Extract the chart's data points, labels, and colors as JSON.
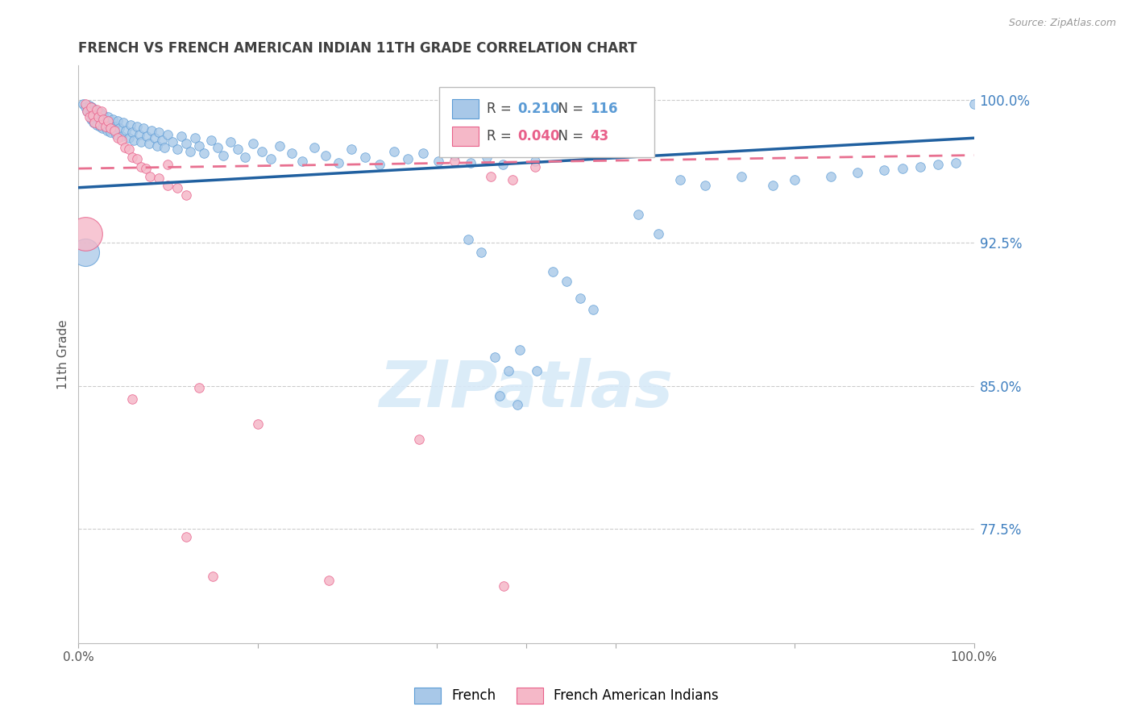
{
  "title": "FRENCH VS FRENCH AMERICAN INDIAN 11TH GRADE CORRELATION CHART",
  "source": "Source: ZipAtlas.com",
  "ylabel": "11th Grade",
  "xmin": 0.0,
  "xmax": 1.0,
  "ymin": 0.715,
  "ymax": 1.018,
  "yticks": [
    0.775,
    0.85,
    0.925,
    1.0
  ],
  "ytick_labels": [
    "77.5%",
    "85.0%",
    "92.5%",
    "100.0%"
  ],
  "legend_blue_r": "0.210",
  "legend_blue_n": "116",
  "legend_pink_r": "0.040",
  "legend_pink_n": "43",
  "blue_fill": "#a8c8e8",
  "blue_edge": "#5b9bd5",
  "pink_fill": "#f5b8c8",
  "pink_edge": "#e8608a",
  "blue_line": "#2060a0",
  "pink_line": "#e87090",
  "grid_color": "#cccccc",
  "title_color": "#404040",
  "right_axis_color": "#4080c0",
  "watermark_color": "#d8eaf8",
  "blue_scatter": [
    [
      0.005,
      0.998
    ],
    [
      0.008,
      0.996
    ],
    [
      0.01,
      0.994
    ],
    [
      0.012,
      0.997
    ],
    [
      0.013,
      0.993
    ],
    [
      0.014,
      0.99
    ],
    [
      0.015,
      0.996
    ],
    [
      0.016,
      0.992
    ],
    [
      0.017,
      0.988
    ],
    [
      0.018,
      0.995
    ],
    [
      0.019,
      0.991
    ],
    [
      0.02,
      0.987
    ],
    [
      0.022,
      0.994
    ],
    [
      0.023,
      0.99
    ],
    [
      0.024,
      0.986
    ],
    [
      0.025,
      0.993
    ],
    [
      0.026,
      0.989
    ],
    [
      0.027,
      0.985
    ],
    [
      0.028,
      0.992
    ],
    [
      0.03,
      0.988
    ],
    [
      0.032,
      0.984
    ],
    [
      0.033,
      0.991
    ],
    [
      0.034,
      0.987
    ],
    [
      0.036,
      0.983
    ],
    [
      0.038,
      0.99
    ],
    [
      0.04,
      0.986
    ],
    [
      0.042,
      0.982
    ],
    [
      0.044,
      0.989
    ],
    [
      0.046,
      0.985
    ],
    [
      0.048,
      0.981
    ],
    [
      0.05,
      0.988
    ],
    [
      0.053,
      0.984
    ],
    [
      0.056,
      0.98
    ],
    [
      0.058,
      0.987
    ],
    [
      0.06,
      0.983
    ],
    [
      0.062,
      0.979
    ],
    [
      0.065,
      0.986
    ],
    [
      0.068,
      0.982
    ],
    [
      0.07,
      0.978
    ],
    [
      0.073,
      0.985
    ],
    [
      0.076,
      0.981
    ],
    [
      0.079,
      0.977
    ],
    [
      0.082,
      0.984
    ],
    [
      0.085,
      0.98
    ],
    [
      0.088,
      0.976
    ],
    [
      0.09,
      0.983
    ],
    [
      0.093,
      0.979
    ],
    [
      0.096,
      0.975
    ],
    [
      0.1,
      0.982
    ],
    [
      0.105,
      0.978
    ],
    [
      0.11,
      0.974
    ],
    [
      0.115,
      0.981
    ],
    [
      0.12,
      0.977
    ],
    [
      0.125,
      0.973
    ],
    [
      0.13,
      0.98
    ],
    [
      0.135,
      0.976
    ],
    [
      0.14,
      0.972
    ],
    [
      0.148,
      0.979
    ],
    [
      0.155,
      0.975
    ],
    [
      0.162,
      0.971
    ],
    [
      0.17,
      0.978
    ],
    [
      0.178,
      0.974
    ],
    [
      0.186,
      0.97
    ],
    [
      0.195,
      0.977
    ],
    [
      0.205,
      0.973
    ],
    [
      0.215,
      0.969
    ],
    [
      0.225,
      0.976
    ],
    [
      0.238,
      0.972
    ],
    [
      0.25,
      0.968
    ],
    [
      0.263,
      0.975
    ],
    [
      0.276,
      0.971
    ],
    [
      0.29,
      0.967
    ],
    [
      0.305,
      0.974
    ],
    [
      0.32,
      0.97
    ],
    [
      0.336,
      0.966
    ],
    [
      0.352,
      0.973
    ],
    [
      0.368,
      0.969
    ],
    [
      0.385,
      0.972
    ],
    [
      0.402,
      0.968
    ],
    [
      0.42,
      0.971
    ],
    [
      0.438,
      0.967
    ],
    [
      0.456,
      0.97
    ],
    [
      0.474,
      0.966
    ],
    [
      0.493,
      0.869
    ],
    [
      0.512,
      0.858
    ],
    [
      0.48,
      0.858
    ],
    [
      0.465,
      0.865
    ],
    [
      0.45,
      0.92
    ],
    [
      0.435,
      0.927
    ],
    [
      0.51,
      0.968
    ],
    [
      0.53,
      0.91
    ],
    [
      0.545,
      0.905
    ],
    [
      0.56,
      0.896
    ],
    [
      0.575,
      0.89
    ],
    [
      0.47,
      0.845
    ],
    [
      0.49,
      0.84
    ],
    [
      0.625,
      0.94
    ],
    [
      0.648,
      0.93
    ],
    [
      0.672,
      0.958
    ],
    [
      0.7,
      0.955
    ],
    [
      0.74,
      0.96
    ],
    [
      0.775,
      0.955
    ],
    [
      0.8,
      0.958
    ],
    [
      0.84,
      0.96
    ],
    [
      0.87,
      0.962
    ],
    [
      0.9,
      0.963
    ],
    [
      0.92,
      0.964
    ],
    [
      0.94,
      0.965
    ],
    [
      0.96,
      0.966
    ],
    [
      0.98,
      0.967
    ],
    [
      1.0,
      0.998
    ]
  ],
  "blue_large": [
    [
      0.008,
      0.92
    ]
  ],
  "pink_scatter": [
    [
      0.008,
      0.998
    ],
    [
      0.01,
      0.994
    ],
    [
      0.012,
      0.991
    ],
    [
      0.014,
      0.996
    ],
    [
      0.016,
      0.992
    ],
    [
      0.018,
      0.988
    ],
    [
      0.02,
      0.995
    ],
    [
      0.022,
      0.991
    ],
    [
      0.024,
      0.987
    ],
    [
      0.026,
      0.994
    ],
    [
      0.028,
      0.99
    ],
    [
      0.03,
      0.986
    ],
    [
      0.033,
      0.989
    ],
    [
      0.036,
      0.985
    ],
    [
      0.04,
      0.984
    ],
    [
      0.044,
      0.98
    ],
    [
      0.048,
      0.979
    ],
    [
      0.052,
      0.975
    ],
    [
      0.056,
      0.974
    ],
    [
      0.06,
      0.97
    ],
    [
      0.065,
      0.969
    ],
    [
      0.07,
      0.965
    ],
    [
      0.075,
      0.964
    ],
    [
      0.08,
      0.96
    ],
    [
      0.09,
      0.959
    ],
    [
      0.1,
      0.955
    ],
    [
      0.11,
      0.954
    ],
    [
      0.12,
      0.95
    ],
    [
      0.135,
      0.849
    ],
    [
      0.06,
      0.843
    ],
    [
      0.1,
      0.966
    ],
    [
      0.2,
      0.83
    ],
    [
      0.28,
      0.748
    ],
    [
      0.38,
      0.822
    ],
    [
      0.42,
      0.968
    ],
    [
      0.46,
      0.96
    ],
    [
      0.485,
      0.958
    ],
    [
      0.51,
      0.965
    ],
    [
      0.475,
      0.745
    ],
    [
      0.12,
      0.771
    ],
    [
      0.15,
      0.75
    ]
  ],
  "pink_large": [
    [
      0.008,
      0.93
    ]
  ],
  "blue_trend_x": [
    0.0,
    1.0
  ],
  "blue_trend_y": [
    0.954,
    0.98
  ],
  "pink_trend_x": [
    0.0,
    1.0
  ],
  "pink_trend_y": [
    0.964,
    0.971
  ]
}
